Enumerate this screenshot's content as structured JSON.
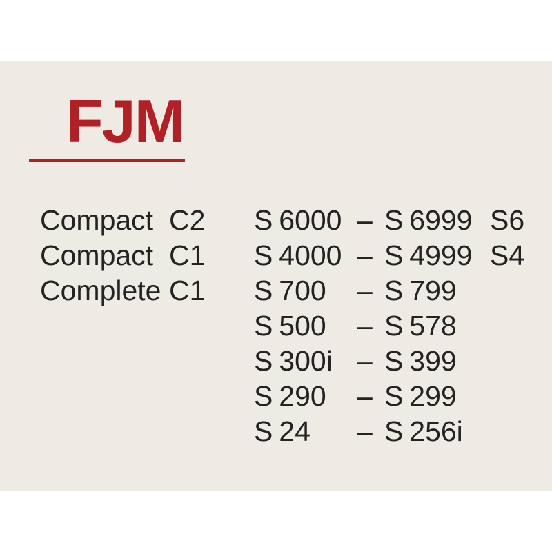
{
  "colors": {
    "page_background": "#ffffff",
    "panel_background": "#edebe4",
    "accent_red": "#b21f24",
    "text": "#232323"
  },
  "title": {
    "label": "FJM"
  },
  "table": {
    "dash": "–",
    "rows": [
      {
        "model": "Compact",
        "code": "C2",
        "range_start": "S 6000",
        "range_end": "S 6999",
        "series": "S6"
      },
      {
        "model": "Compact",
        "code": "C1",
        "range_start": "S 4000",
        "range_end": "S 4999",
        "series": "S4"
      },
      {
        "model": "Complete",
        "code": "C1",
        "range_start": "S 700",
        "range_end": "S 799",
        "series": ""
      },
      {
        "model": "",
        "code": "",
        "range_start": "S 500",
        "range_end": "S 578",
        "series": ""
      },
      {
        "model": "",
        "code": "",
        "range_start": "S 300i",
        "range_end": "S 399",
        "series": ""
      },
      {
        "model": "",
        "code": "",
        "range_start": "S 290",
        "range_end": "S 299",
        "series": ""
      },
      {
        "model": "",
        "code": "",
        "range_start": "S 24",
        "range_end": "S 256i",
        "series": ""
      }
    ]
  }
}
